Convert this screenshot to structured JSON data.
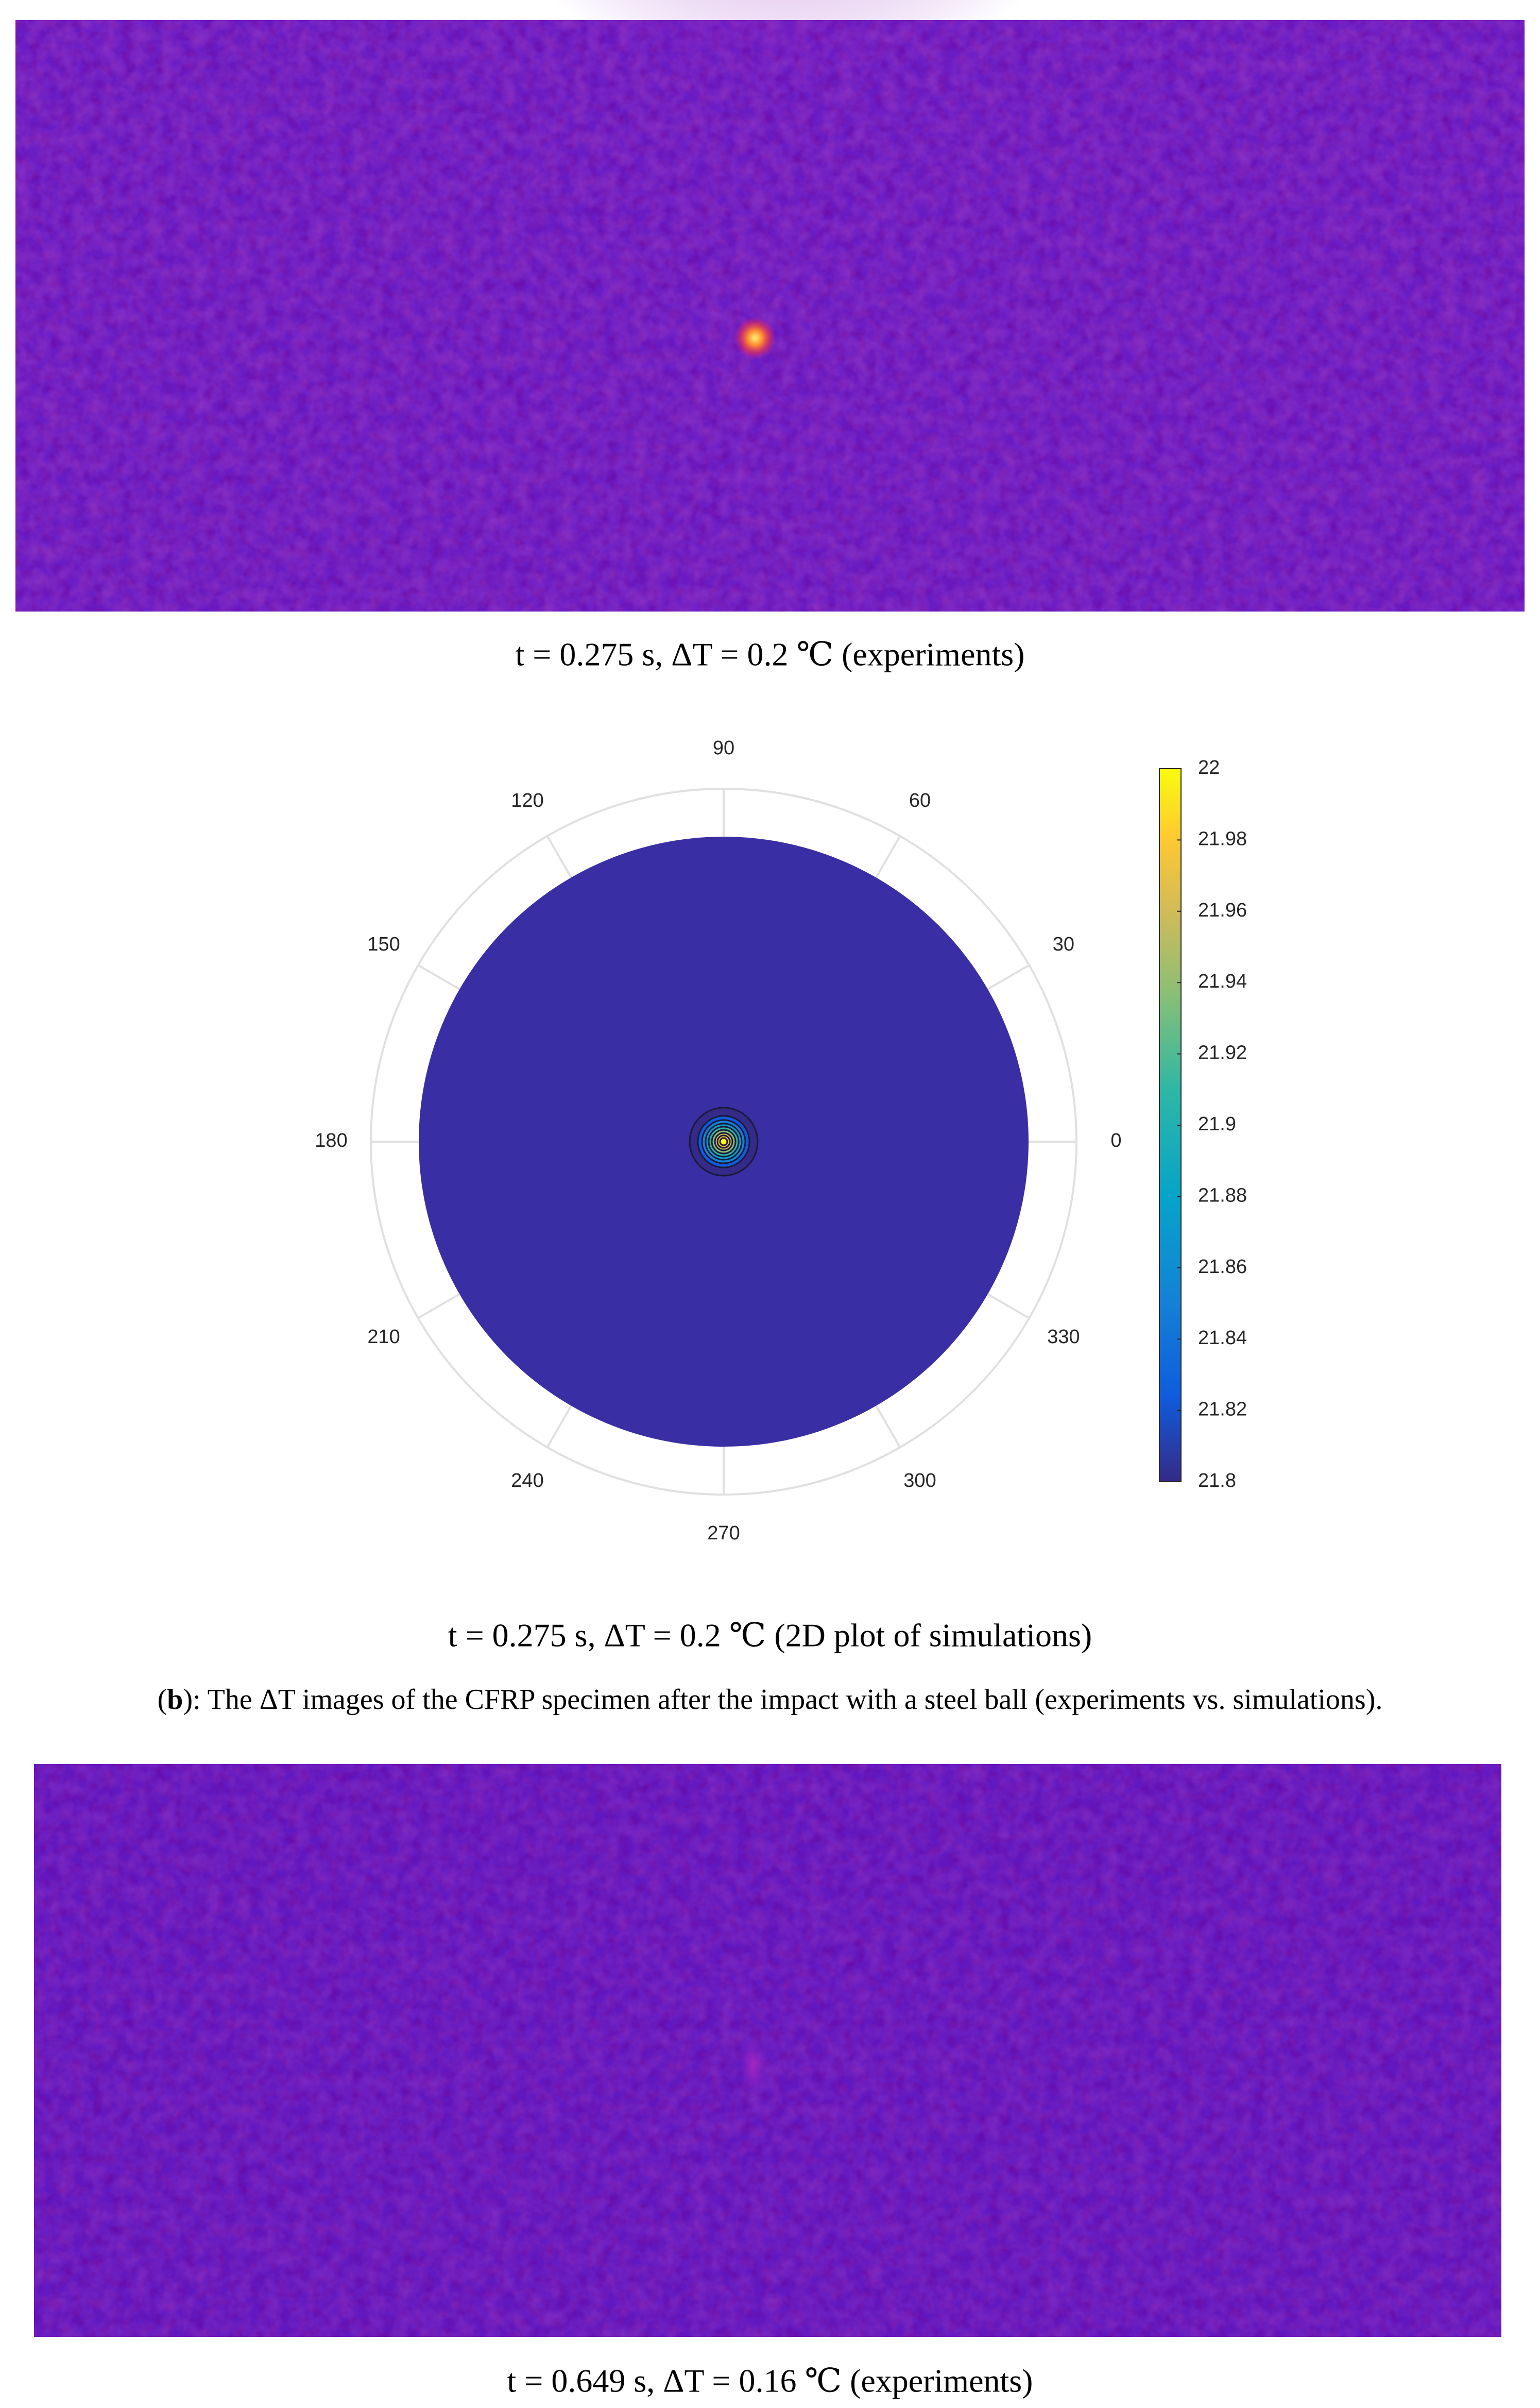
{
  "image_1": {
    "caption": "t = 0.275 s, ΔT = 0.2 ℃  (experiments)"
  },
  "polar_plot": {
    "theta_ticks": [
      0,
      30,
      60,
      90,
      120,
      150,
      180,
      210,
      240,
      270,
      300,
      330
    ],
    "colorbar": {
      "lim": [
        21.8,
        22
      ],
      "ticks": [
        21.8,
        21.82,
        21.84,
        21.86,
        21.88,
        21.9,
        21.92,
        21.94,
        21.96,
        21.98,
        22
      ]
    },
    "caption": "t = 0.275 s, ΔT = 0.2 ℃  (2D plot of simulations)"
  },
  "figure_caption": {
    "parts": [
      "(",
      "b",
      "): The ΔT images of the CFRP specimen after the impact with a steel ball (experiments vs. simulations)."
    ]
  },
  "image_2": {
    "caption": "t = 0.649 s, ΔT = 0.16 ℃  (experiments)"
  }
}
